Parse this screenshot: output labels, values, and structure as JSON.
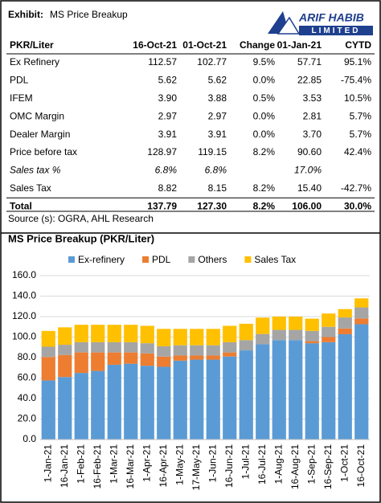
{
  "header": {
    "exhibit": "Exhibit:",
    "title": "MS Price Breakup",
    "logo_name": "ARIF HABIB",
    "logo_sub": "LIMITED"
  },
  "table": {
    "columns": [
      "PKR/Liter",
      "16-Oct-21",
      "01-Oct-21",
      "Change",
      "01-Jan-21",
      "CYTD"
    ],
    "rows": [
      [
        "Ex Refinery",
        "112.57",
        "102.77",
        "9.5%",
        "57.71",
        "95.1%"
      ],
      [
        "PDL",
        "5.62",
        "5.62",
        "0.0%",
        "22.85",
        "-75.4%"
      ],
      [
        "IFEM",
        "3.90",
        "3.88",
        "0.5%",
        "3.53",
        "10.5%"
      ],
      [
        "OMC Margin",
        "2.97",
        "2.97",
        "0.0%",
        "2.81",
        "5.7%"
      ],
      [
        "Dealer Margin",
        "3.91",
        "3.91",
        "0.0%",
        "3.70",
        "5.7%"
      ],
      [
        "Price before tax",
        "128.97",
        "119.15",
        "8.2%",
        "90.60",
        "42.4%"
      ],
      [
        "Sales tax %",
        "6.8%",
        "6.8%",
        null,
        "17.0%",
        null
      ],
      [
        "Sales Tax",
        "8.82",
        "8.15",
        "8.2%",
        "15.40",
        "-42.7%"
      ],
      [
        "Total",
        "137.79",
        "127.30",
        "8.2%",
        "106.00",
        "30.0%"
      ]
    ]
  },
  "source": "Source (s): OGRA, AHL Research",
  "chart_data": {
    "type": "stacked_bar",
    "title": "MS Price Breakup (PKR/Liter)",
    "categories": [
      "1-Jan-21",
      "16-Jan-21",
      "1-Feb-21",
      "16-Feb-21",
      "1-Mar-21",
      "16-Mar-21",
      "1-Apr-21",
      "16-Apr-21",
      "1-May-21",
      "17-May-21",
      "1-Jun-21",
      "16-Jun-21",
      "1-Jul-21",
      "16-Jul-21",
      "1-Aug-21",
      "16-Aug-21",
      "1-Sep-21",
      "16-Sep-21",
      "1-Oct-21",
      "16-Oct-21"
    ],
    "series": [
      {
        "name": "Ex-refinery",
        "color": "#5b9bd5",
        "values": [
          57.71,
          61,
          65,
          67,
          73,
          74,
          72,
          71,
          77,
          78,
          78,
          81,
          87,
          93,
          97,
          97,
          94,
          95,
          102.77,
          112.57
        ]
      },
      {
        "name": "PDL",
        "color": "#ed7d31",
        "values": [
          22.85,
          21.5,
          20,
          18,
          12,
          11,
          12,
          10,
          5,
          4,
          4,
          4,
          0,
          0,
          0,
          0,
          2,
          5,
          5.62,
          5.62
        ]
      },
      {
        "name": "Others",
        "color": "#a5a5a5",
        "values": [
          10.04,
          10,
          10,
          10,
          10,
          10,
          10,
          10,
          10,
          10,
          10,
          10,
          10,
          10,
          10,
          10,
          10,
          10,
          10.76,
          10.78
        ]
      },
      {
        "name": "Sales Tax",
        "color": "#ffc000",
        "values": [
          15.4,
          17,
          17,
          17,
          17,
          17,
          17,
          17,
          16,
          16,
          16,
          16,
          16,
          16,
          13,
          13,
          12,
          13,
          8.15,
          8.82
        ]
      }
    ],
    "ylim": [
      0,
      160
    ],
    "yticks": [
      {
        "value": 0,
        "label": "0.0"
      },
      {
        "value": 20,
        "label": "20.0"
      },
      {
        "value": 40,
        "label": "40.0"
      },
      {
        "value": 60,
        "label": "60.0"
      },
      {
        "value": 80,
        "label": "80.0"
      },
      {
        "value": 100,
        "label": "100.0"
      },
      {
        "value": 120,
        "label": "120.0"
      },
      {
        "value": 140,
        "label": "140.0"
      },
      {
        "value": 160,
        "label": "160.0"
      }
    ],
    "grid": true,
    "legend": "top"
  }
}
